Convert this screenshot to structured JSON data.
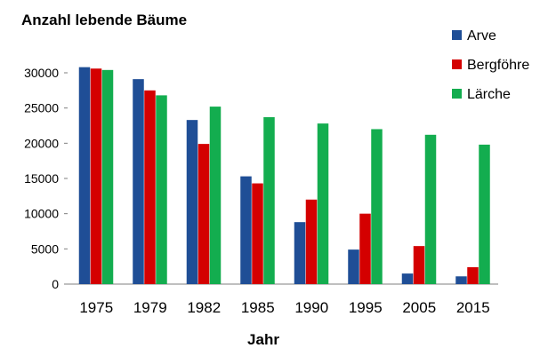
{
  "chart_data": {
    "type": "bar",
    "title": "Anzahl lebende Bäume",
    "xlabel": "Jahr",
    "ylabel": "",
    "categories": [
      "1975",
      "1979",
      "1982",
      "1985",
      "1990",
      "1995",
      "2005",
      "2015"
    ],
    "series": [
      {
        "name": "Arve",
        "color": "#1f4e96",
        "values": [
          30800,
          29100,
          23300,
          15300,
          8800,
          4900,
          1500,
          1100
        ]
      },
      {
        "name": "Bergföhre",
        "color": "#d40000",
        "values": [
          30600,
          27500,
          19900,
          14300,
          12000,
          10000,
          5400,
          2400
        ]
      },
      {
        "name": "Lärche",
        "color": "#13ad4f",
        "values": [
          30400,
          26800,
          25200,
          23700,
          22800,
          22000,
          21200,
          19800
        ]
      }
    ],
    "yticks": [
      "0",
      "5000",
      "10000",
      "15000",
      "20000",
      "25000",
      "30000"
    ],
    "ylim": [
      0,
      30000
    ],
    "grid": false,
    "legend_position": "top-right"
  }
}
